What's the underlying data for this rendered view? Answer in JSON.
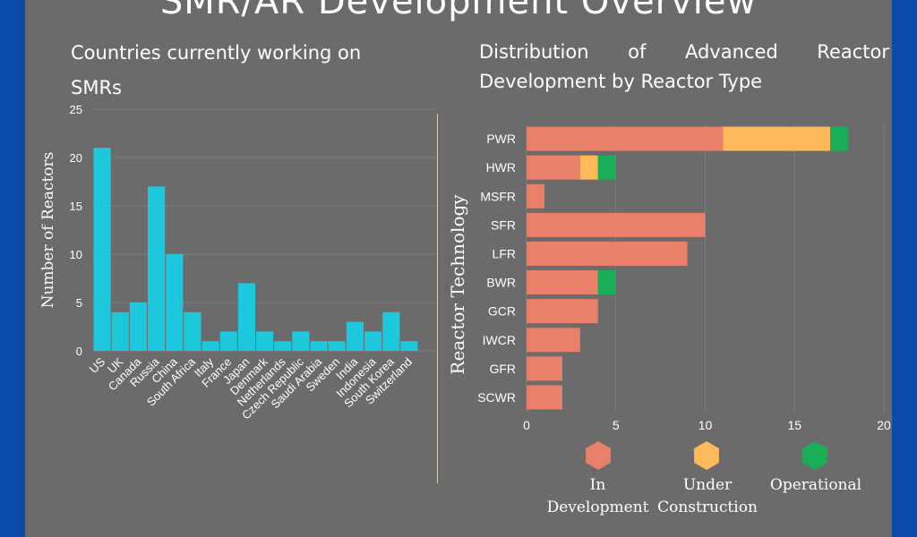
{
  "page": {
    "title": "SMR/AR Development Overview"
  },
  "chart_data": [
    {
      "type": "bar",
      "title": "Countries currently working on SMRs",
      "xlabel": "",
      "ylabel": "Number of Reactors",
      "ylim": [
        0,
        25
      ],
      "yticks": [
        0,
        5,
        10,
        15,
        20,
        25
      ],
      "grid": true,
      "categories": [
        "US",
        "UK",
        "Canada",
        "Russia",
        "China",
        "South Africa",
        "Italy",
        "France",
        "Japan",
        "Denmark",
        "Netherlands",
        "Czech Republic",
        "Saudi Arabia",
        "Sweden",
        "India",
        "Indonesia",
        "South Korea",
        "Switzerland"
      ],
      "values": [
        21,
        4,
        5,
        17,
        10,
        4,
        1,
        2,
        7,
        2,
        1,
        2,
        1,
        1,
        3,
        2,
        4,
        1
      ],
      "colors": {
        "bar": "#1ec8dc"
      }
    },
    {
      "type": "bar",
      "orientation": "horizontal",
      "stacked": true,
      "title": "Distribution of Advanced Reactor Development by Reactor Type",
      "xlabel": "",
      "ylabel": "Reactor Technology",
      "xlim": [
        0,
        20
      ],
      "xticks": [
        0,
        5,
        10,
        15,
        20
      ],
      "grid": true,
      "legend_position": "bottom",
      "categories": [
        "PWR",
        "HWR",
        "MSFR",
        "SFR",
        "LFR",
        "BWR",
        "GCR",
        "IWCR",
        "GFR",
        "SCWR"
      ],
      "series": [
        {
          "name": "In Development",
          "color": "#e8806a",
          "values": [
            11,
            3,
            1,
            10,
            9,
            4,
            4,
            3,
            2,
            2
          ]
        },
        {
          "name": "Under Construction",
          "color": "#fdb95a",
          "values": [
            6,
            1,
            0,
            0,
            0,
            0,
            0,
            0,
            0,
            0
          ]
        },
        {
          "name": "Operational",
          "color": "#1aae57",
          "values": [
            1,
            1,
            0,
            0,
            0,
            1,
            0,
            0,
            0,
            0
          ]
        }
      ],
      "legend_labels": {
        "in_dev": "In Development",
        "under_line1": "Under",
        "under_line2": "Construction",
        "operational": "Operational"
      }
    }
  ]
}
